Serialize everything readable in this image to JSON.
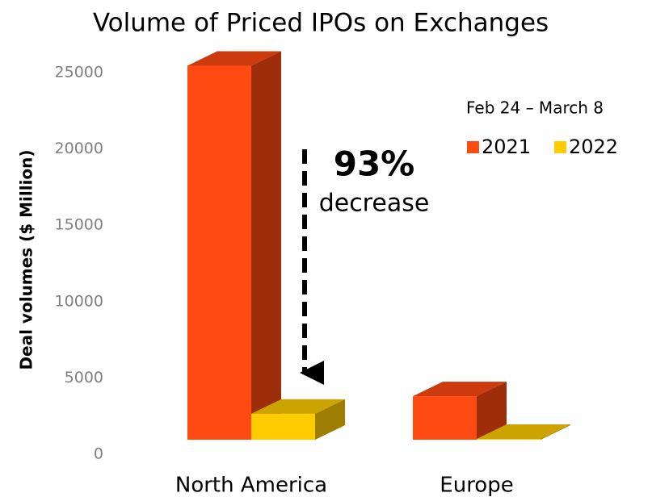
{
  "chart_data": {
    "type": "bar3d",
    "title": "Volume of Priced IPOs on Exchanges",
    "y_label": "Deal volumes ($ Million)",
    "categories": [
      "North America",
      "Europe"
    ],
    "legend_title": "Feb 24 – March 8",
    "series": [
      {
        "name": "2021",
        "color": "#ff4a12",
        "values": [
          24500,
          2850
        ]
      },
      {
        "name": "2022",
        "color": "#ffcc00",
        "values": [
          1700,
          50
        ]
      }
    ],
    "ylim": [
      0,
      25000
    ],
    "yticks": [
      0,
      5000,
      10000,
      15000,
      20000,
      25000
    ],
    "annotations": [
      "93%",
      "decrease"
    ]
  }
}
